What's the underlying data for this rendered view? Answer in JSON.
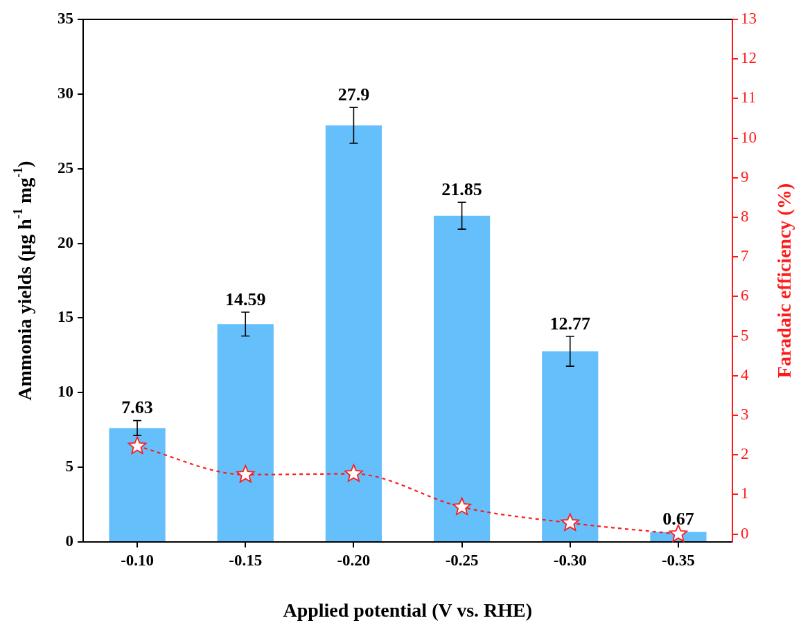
{
  "chart_data": {
    "type": "bar",
    "xlabel": "Applied potential (V vs. RHE)",
    "ylabel": "Ammonia yields (μg h$^{-1}$ mg$^{-1}$)",
    "y2label": "Faradaic efficiency (%)",
    "categories": [
      "-0.10",
      "-0.15",
      "-0.20",
      "-0.25",
      "-0.30",
      "-0.35"
    ],
    "series": [
      {
        "color": "#64bffb",
        "values": [
          7.63,
          14.59,
          27.9,
          21.85,
          12.77,
          0.67
        ],
        "errors": [
          0.5,
          0.8,
          1.2,
          0.9,
          1.0,
          null
        ],
        "value_labels": [
          "7.63",
          "14.59",
          "27.9",
          "21.85",
          "12.77",
          "0.67"
        ]
      },
      {
        "type": "line",
        "axis": "y2",
        "color": "#ff1a1a",
        "values": [
          2.22,
          1.5,
          1.52,
          0.68,
          0.28,
          0.0
        ],
        "marker": "star",
        "line_style": "dashed"
      }
    ],
    "ylim": [
      0,
      35
    ],
    "yticks": [
      0,
      5,
      10,
      15,
      20,
      25,
      30,
      35
    ],
    "y2lim": [
      -0.2,
      13
    ],
    "y2ticks": [
      0,
      1,
      2,
      3,
      4,
      5,
      6,
      7,
      8,
      9,
      10,
      11,
      12,
      13
    ],
    "grid": false,
    "legend": false
  }
}
